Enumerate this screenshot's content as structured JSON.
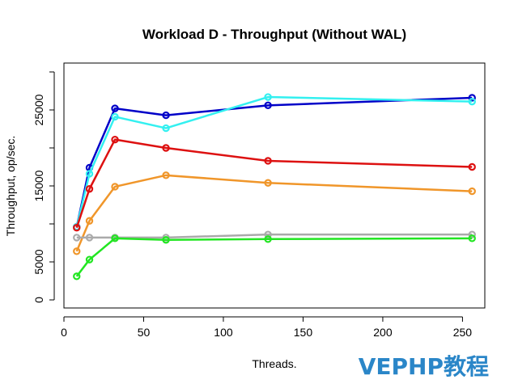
{
  "watermark": "VEPHP教程",
  "chart_data": {
    "type": "line",
    "title": "Workload D - Throughput (Without WAL)",
    "xlabel": "Threads.",
    "ylabel": "Throughput, op/sec.",
    "xlim": [
      0,
      264
    ],
    "ylim": [
      0,
      30000
    ],
    "xticks": [
      0,
      50,
      100,
      150,
      200,
      250
    ],
    "yticks": [
      0,
      5000,
      15000,
      25000
    ],
    "ygrid_ticks": [
      0,
      5000,
      10000,
      15000,
      20000,
      25000,
      30000
    ],
    "grid": false,
    "x": [
      8,
      16,
      32,
      64,
      128,
      256
    ],
    "series": [
      {
        "color": "#0000c8",
        "values": [
          9600,
          17400,
          25200,
          24300,
          25600,
          26600
        ]
      },
      {
        "color": "#33f0f0",
        "values": [
          9600,
          16600,
          24100,
          22600,
          26700,
          26100
        ]
      },
      {
        "color": "#dd1111",
        "values": [
          9500,
          14600,
          21100,
          20000,
          18300,
          17500
        ]
      },
      {
        "color": "#f0962a",
        "values": [
          6400,
          10400,
          14900,
          16400,
          15400,
          14300
        ]
      },
      {
        "color": "#aaaaaa",
        "values": [
          8200,
          8200,
          8200,
          8200,
          8600,
          8600
        ]
      },
      {
        "color": "#22e622",
        "values": [
          3100,
          5300,
          8100,
          7900,
          8000,
          8100
        ]
      }
    ]
  }
}
